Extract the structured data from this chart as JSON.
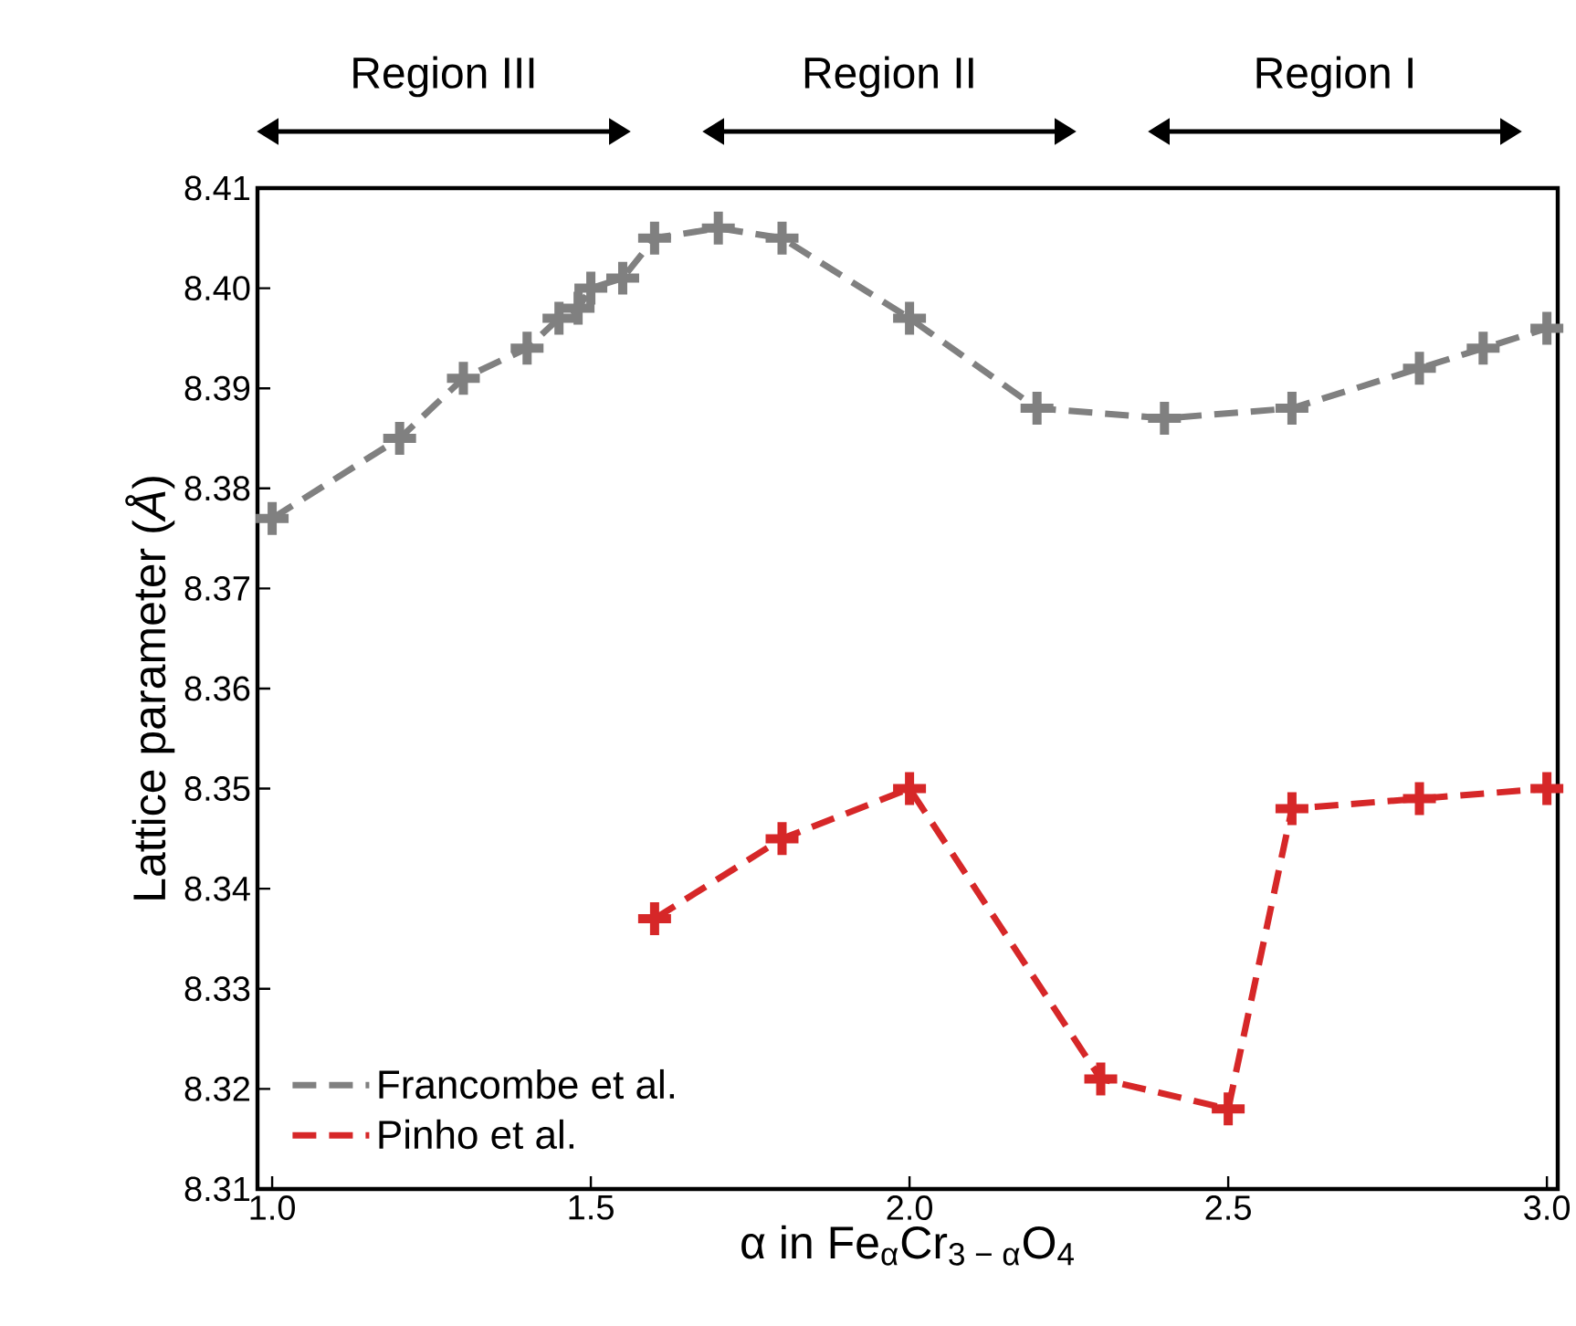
{
  "chart_data": {
    "type": "line",
    "xlabel": "α in Fe$_{α}$Cr$_{3 − α}$O$_{4}$",
    "ylabel": "Lattice parameter (*Å*)",
    "annotations": [
      "Region III",
      "Region II",
      "Region I"
    ],
    "xlim": [
      0.977,
      3.017
    ],
    "ylim": [
      8.31,
      8.41
    ],
    "xticks": [
      {
        "value": 1.0,
        "label": "1.0"
      },
      {
        "value": 1.5,
        "label": "1.5"
      },
      {
        "value": 2.0,
        "label": "2.0"
      },
      {
        "value": 2.5,
        "label": "2.5"
      },
      {
        "value": 3.0,
        "label": "3.0"
      }
    ],
    "yticks": [
      {
        "value": 8.31,
        "label": "8.31"
      },
      {
        "value": 8.32,
        "label": "8.32"
      },
      {
        "value": 8.33,
        "label": "8.33"
      },
      {
        "value": 8.34,
        "label": "8.34"
      },
      {
        "value": 8.35,
        "label": "8.35"
      },
      {
        "value": 8.36,
        "label": "8.36"
      },
      {
        "value": 8.37,
        "label": "8.37"
      },
      {
        "value": 8.38,
        "label": "8.38"
      },
      {
        "value": 8.39,
        "label": "8.39"
      },
      {
        "value": 8.4,
        "label": "8.40"
      },
      {
        "value": 8.41,
        "label": "8.41"
      }
    ],
    "marker": "cross",
    "line_style": "dashed",
    "legend": "bottom left",
    "grid": false,
    "series": [
      {
        "name": "Francombe et al.",
        "color": "#808080",
        "x": [
          1.0,
          1.2,
          1.3,
          1.4,
          1.45,
          1.48,
          1.5,
          1.55,
          1.6,
          1.7,
          1.8,
          2.0,
          2.2,
          2.4,
          2.6,
          2.8,
          2.9,
          3.0
        ],
        "values": [
          8.377,
          8.385,
          8.391,
          8.394,
          8.397,
          8.398,
          8.4,
          8.401,
          8.405,
          8.406,
          8.405,
          8.397,
          8.388,
          8.387,
          8.388,
          8.392,
          8.394,
          8.396
        ]
      },
      {
        "name": "Pinho et al.",
        "color": "#d62728",
        "x": [
          1.6,
          1.8,
          2.0,
          2.3,
          2.5,
          2.6,
          2.8,
          3.0
        ],
        "values": [
          8.337,
          8.345,
          8.35,
          8.321,
          8.318,
          8.348,
          8.349,
          8.35
        ]
      }
    ]
  }
}
